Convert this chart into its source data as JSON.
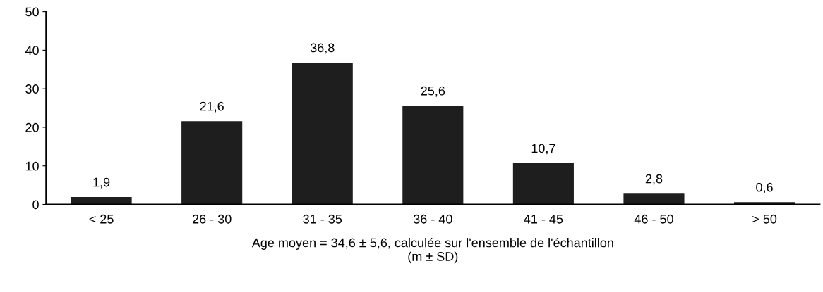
{
  "chart_data": {
    "type": "bar",
    "categories": [
      "< 25",
      "26 - 30",
      "31 - 35",
      "36 - 40",
      "41 - 45",
      "46 - 50",
      "> 50"
    ],
    "values": [
      1.9,
      21.6,
      36.8,
      25.6,
      10.7,
      2.8,
      0.6
    ],
    "value_labels": [
      "1,9",
      "21,6",
      "36,8",
      "25,6",
      "10,7",
      "2,8",
      "0,6"
    ],
    "color": "#1e1e1e",
    "xlabel": "Age moyen = 34,6 ± 5,6, calculée sur l'ensemble de l'échantillon\n(m ± SD)",
    "ylim": [
      0,
      50
    ],
    "yticks": [
      0,
      10,
      20,
      30,
      40,
      50
    ],
    "grid": false,
    "legend": false
  }
}
